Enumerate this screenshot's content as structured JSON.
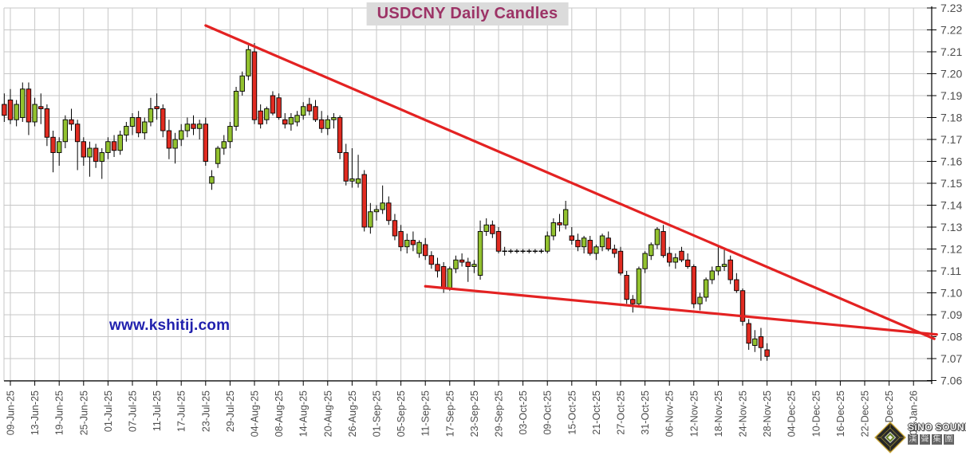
{
  "title": "USDCNY Daily Candles",
  "watermark": "www.kshitij.com",
  "logo": {
    "name": "SiNO SOUND",
    "chinese_chars": [
      "漢",
      "聲",
      "集",
      "團"
    ]
  },
  "colors": {
    "background": "#FFFFFF",
    "up_candle": "#93C22F",
    "down_candle": "#E02B21",
    "candle_outline": "#000000",
    "trendline": "#E32222",
    "grid": "#C7C7C7",
    "axis": "#000000",
    "axis_label": "#4D4D4D",
    "title_text": "#9C3366",
    "title_background": "#DBDBDB",
    "watermark_text": "#2121AE"
  },
  "chart_data": {
    "type": "candlestick",
    "title": "USDCNY Daily Candles",
    "grid": true,
    "y_axis": {
      "side": "right",
      "min": 7.06,
      "max": 7.23,
      "tick_step": 0.01,
      "labels": [
        "7.23",
        "7.22",
        "7.21",
        "7.20",
        "7.19",
        "7.18",
        "7.17",
        "7.16",
        "7.15",
        "7.14",
        "7.13",
        "7.12",
        "7.11",
        "7.10",
        "7.09",
        "7.08",
        "7.07",
        "7.06"
      ]
    },
    "x_axis": {
      "labels": [
        "09-Jun-25",
        "13-Jun-25",
        "19-Jun-25",
        "25-Jun-25",
        "01-Jul-25",
        "07-Jul-25",
        "11-Jul-25",
        "17-Jul-25",
        "23-Jul-25",
        "29-Jul-25",
        "04-Aug-25",
        "08-Aug-25",
        "14-Aug-25",
        "20-Aug-25",
        "26-Aug-25",
        "01-Sep-25",
        "05-Sep-25",
        "11-Sep-25",
        "17-Sep-25",
        "23-Sep-25",
        "29-Sep-25",
        "03-Oct-25",
        "09-Oct-25",
        "15-Oct-25",
        "21-Oct-25",
        "27-Oct-25",
        "31-Oct-25",
        "06-Nov-25",
        "12-Nov-25",
        "18-Nov-25",
        "24-Nov-25",
        "28-Nov-25",
        "04-Dec-25",
        "10-Dec-25",
        "16-Dec-25",
        "22-Dec-25",
        "26-Dec-25",
        "01-Jan-26"
      ],
      "label_every_n_candles": 4
    },
    "candles_format": [
      "date",
      "open",
      "high",
      "low",
      "close"
    ],
    "candles": [
      [
        "06-Jun-25",
        7.186,
        7.191,
        7.178,
        7.181
      ],
      [
        "09-Jun-25",
        7.188,
        7.193,
        7.177,
        7.179
      ],
      [
        "10-Jun-25",
        7.179,
        7.188,
        7.176,
        7.186
      ],
      [
        "11-Jun-25",
        7.18,
        7.196,
        7.178,
        7.193
      ],
      [
        "12-Jun-25",
        7.193,
        7.196,
        7.172,
        7.178
      ],
      [
        "13-Jun-25",
        7.178,
        7.189,
        7.176,
        7.186
      ],
      [
        "16-Jun-25",
        7.185,
        7.191,
        7.177,
        7.184
      ],
      [
        "17-Jun-25",
        7.184,
        7.186,
        7.167,
        7.171
      ],
      [
        "18-Jun-25",
        7.171,
        7.174,
        7.155,
        7.164
      ],
      [
        "19-Jun-25",
        7.164,
        7.171,
        7.158,
        7.169
      ],
      [
        "20-Jun-25",
        7.169,
        7.181,
        7.166,
        7.179
      ],
      [
        "23-Jun-25",
        7.179,
        7.184,
        7.174,
        7.177
      ],
      [
        "24-Jun-25",
        7.177,
        7.179,
        7.156,
        7.169
      ],
      [
        "25-Jun-25",
        7.169,
        7.171,
        7.158,
        7.162
      ],
      [
        "26-Jun-25",
        7.162,
        7.169,
        7.153,
        7.166
      ],
      [
        "27-Jun-25",
        7.166,
        7.168,
        7.157,
        7.16
      ],
      [
        "30-Jun-25",
        7.16,
        7.166,
        7.152,
        7.164
      ],
      [
        "01-Jul-25",
        7.164,
        7.171,
        7.161,
        7.169
      ],
      [
        "02-Jul-25",
        7.169,
        7.172,
        7.162,
        7.165
      ],
      [
        "03-Jul-25",
        7.165,
        7.174,
        7.163,
        7.172
      ],
      [
        "04-Jul-25",
        7.172,
        7.178,
        7.169,
        7.176
      ],
      [
        "07-Jul-25",
        7.176,
        7.182,
        7.172,
        7.18
      ],
      [
        "08-Jul-25",
        7.18,
        7.183,
        7.171,
        7.173
      ],
      [
        "09-Jul-25",
        7.173,
        7.18,
        7.17,
        7.178
      ],
      [
        "10-Jul-25",
        7.178,
        7.189,
        7.176,
        7.184
      ],
      [
        "11-Jul-25",
        7.185,
        7.191,
        7.179,
        7.184
      ],
      [
        "14-Jul-25",
        7.184,
        7.186,
        7.171,
        7.174
      ],
      [
        "15-Jul-25",
        7.174,
        7.179,
        7.161,
        7.166
      ],
      [
        "16-Jul-25",
        7.166,
        7.173,
        7.159,
        7.17
      ],
      [
        "17-Jul-25",
        7.17,
        7.177,
        7.167,
        7.174
      ],
      [
        "18-Jul-25",
        7.174,
        7.18,
        7.171,
        7.177
      ],
      [
        "21-Jul-25",
        7.177,
        7.181,
        7.172,
        7.175
      ],
      [
        "22-Jul-25",
        7.175,
        7.179,
        7.17,
        7.177
      ],
      [
        "23-Jul-25",
        7.177,
        7.18,
        7.158,
        7.16
      ],
      [
        "24-Jul-25",
        7.15,
        7.156,
        7.147,
        7.153
      ],
      [
        "25-Jul-25",
        7.159,
        7.167,
        7.157,
        7.166
      ],
      [
        "28-Jul-25",
        7.166,
        7.172,
        7.163,
        7.169
      ],
      [
        "29-Jul-25",
        7.169,
        7.178,
        7.166,
        7.176
      ],
      [
        "30-Jul-25",
        7.176,
        7.194,
        7.174,
        7.192
      ],
      [
        "31-Jul-25",
        7.192,
        7.201,
        7.19,
        7.199
      ],
      [
        "01-Aug-25",
        7.199,
        7.213,
        7.197,
        7.211
      ],
      [
        "04-Aug-25",
        7.21,
        7.214,
        7.177,
        7.179
      ],
      [
        "05-Aug-25",
        7.183,
        7.186,
        7.175,
        7.177
      ],
      [
        "06-Aug-25",
        7.179,
        7.185,
        7.177,
        7.184
      ],
      [
        "07-Aug-25",
        7.19,
        7.192,
        7.181,
        7.182
      ],
      [
        "08-Aug-25",
        7.189,
        7.191,
        7.179,
        7.18
      ],
      [
        "11-Aug-25",
        7.179,
        7.182,
        7.175,
        7.177
      ],
      [
        "12-Aug-25",
        7.177,
        7.182,
        7.174,
        7.18
      ],
      [
        "13-Aug-25",
        7.178,
        7.183,
        7.176,
        7.181
      ],
      [
        "14-Aug-25",
        7.181,
        7.187,
        7.179,
        7.185
      ],
      [
        "15-Aug-25",
        7.186,
        7.189,
        7.181,
        7.183
      ],
      [
        "18-Aug-25",
        7.185,
        7.188,
        7.178,
        7.179
      ],
      [
        "19-Aug-25",
        7.179,
        7.183,
        7.173,
        7.175
      ],
      [
        "20-Aug-25",
        7.175,
        7.181,
        7.172,
        7.179
      ],
      [
        "21-Aug-25",
        7.179,
        7.182,
        7.175,
        7.18
      ],
      [
        "22-Aug-25",
        7.18,
        7.181,
        7.161,
        7.164
      ],
      [
        "25-Aug-25",
        7.164,
        7.168,
        7.149,
        7.151
      ],
      [
        "26-Aug-25",
        7.151,
        7.166,
        7.148,
        7.152
      ],
      [
        "27-Aug-25",
        7.15,
        7.163,
        7.148,
        7.152
      ],
      [
        "28-Aug-25",
        7.154,
        7.156,
        7.128,
        7.13
      ],
      [
        "29-Aug-25",
        7.13,
        7.141,
        7.127,
        7.137
      ],
      [
        "01-Sep-25",
        7.137,
        7.14,
        7.133,
        7.138
      ],
      [
        "02-Sep-25",
        7.138,
        7.149,
        7.136,
        7.141
      ],
      [
        "03-Sep-25",
        7.141,
        7.144,
        7.131,
        7.133
      ],
      [
        "04-Sep-25",
        7.133,
        7.136,
        7.124,
        7.126
      ],
      [
        "05-Sep-25",
        7.128,
        7.131,
        7.119,
        7.121
      ],
      [
        "08-Sep-25",
        7.121,
        7.127,
        7.118,
        7.124
      ],
      [
        "09-Sep-25",
        7.124,
        7.128,
        7.119,
        7.122
      ],
      [
        "10-Sep-25",
        7.118,
        7.124,
        7.116,
        7.123
      ],
      [
        "11-Sep-25",
        7.122,
        7.125,
        7.115,
        7.117
      ],
      [
        "12-Sep-25",
        7.117,
        7.119,
        7.111,
        7.113
      ],
      [
        "15-Sep-25",
        7.113,
        7.116,
        7.107,
        7.11
      ],
      [
        "16-Sep-25",
        7.112,
        7.114,
        7.1,
        7.102
      ],
      [
        "17-Sep-25",
        7.102,
        7.112,
        7.101,
        7.111
      ],
      [
        "18-Sep-25",
        7.111,
        7.117,
        7.109,
        7.115
      ],
      [
        "19-Sep-25",
        7.115,
        7.118,
        7.112,
        7.114
      ],
      [
        "22-Sep-25",
        7.114,
        7.116,
        7.105,
        7.112
      ],
      [
        "23-Sep-25",
        7.112,
        7.115,
        7.109,
        7.113
      ],
      [
        "24-Sep-25",
        7.108,
        7.133,
        7.106,
        7.128
      ],
      [
        "25-Sep-25",
        7.128,
        7.134,
        7.126,
        7.131
      ],
      [
        "26-Sep-25",
        7.131,
        7.133,
        7.125,
        7.127
      ],
      [
        "29-Sep-25",
        7.128,
        7.13,
        7.118,
        7.119
      ],
      [
        "30-Sep-25",
        7.119,
        7.121,
        7.117,
        7.119
      ],
      [
        "01-Oct-25",
        7.119,
        7.12,
        7.118,
        7.119
      ],
      [
        "02-Oct-25",
        7.119,
        7.12,
        7.118,
        7.119
      ],
      [
        "03-Oct-25",
        7.119,
        7.12,
        7.118,
        7.119
      ],
      [
        "06-Oct-25",
        7.119,
        7.12,
        7.118,
        7.119
      ],
      [
        "07-Oct-25",
        7.119,
        7.12,
        7.118,
        7.119
      ],
      [
        "08-Oct-25",
        7.119,
        7.12,
        7.118,
        7.119
      ],
      [
        "09-Oct-25",
        7.119,
        7.128,
        7.118,
        7.126
      ],
      [
        "10-Oct-25",
        7.126,
        7.134,
        7.124,
        7.132
      ],
      [
        "13-Oct-25",
        7.132,
        7.136,
        7.128,
        7.131
      ],
      [
        "14-Oct-25",
        7.131,
        7.142,
        7.129,
        7.138
      ],
      [
        "15-Oct-25",
        7.126,
        7.13,
        7.122,
        7.124
      ],
      [
        "16-Oct-25",
        7.124,
        7.127,
        7.119,
        7.121
      ],
      [
        "17-Oct-25",
        7.121,
        7.126,
        7.118,
        7.125
      ],
      [
        "20-Oct-25",
        7.124,
        7.126,
        7.117,
        7.118
      ],
      [
        "21-Oct-25",
        7.118,
        7.122,
        7.115,
        7.121
      ],
      [
        "22-Oct-25",
        7.121,
        7.127,
        7.119,
        7.126
      ],
      [
        "23-Oct-25",
        7.125,
        7.128,
        7.119,
        7.12
      ],
      [
        "24-Oct-25",
        7.12,
        7.122,
        7.116,
        7.118
      ],
      [
        "27-Oct-25",
        7.119,
        7.121,
        7.108,
        7.109
      ],
      [
        "28-Oct-25",
        7.108,
        7.11,
        7.095,
        7.097
      ],
      [
        "29-Oct-25",
        7.097,
        7.099,
        7.091,
        7.095
      ],
      [
        "30-Oct-25",
        7.095,
        7.112,
        7.094,
        7.111
      ],
      [
        "31-Oct-25",
        7.111,
        7.119,
        7.109,
        7.118
      ],
      [
        "03-Nov-25",
        7.117,
        7.123,
        7.115,
        7.122
      ],
      [
        "04-Nov-25",
        7.122,
        7.13,
        7.12,
        7.129
      ],
      [
        "05-Nov-25",
        7.128,
        7.131,
        7.116,
        7.117
      ],
      [
        "06-Nov-25",
        7.118,
        7.121,
        7.112,
        7.114
      ],
      [
        "07-Nov-25",
        7.114,
        7.118,
        7.111,
        7.116
      ],
      [
        "10-Nov-25",
        7.119,
        7.121,
        7.114,
        7.115
      ],
      [
        "11-Nov-25",
        7.115,
        7.118,
        7.111,
        7.112
      ],
      [
        "12-Nov-25",
        7.112,
        7.113,
        7.093,
        7.095
      ],
      [
        "13-Nov-25",
        7.095,
        7.1,
        7.092,
        7.098
      ],
      [
        "14-Nov-25",
        7.098,
        7.107,
        7.096,
        7.106
      ],
      [
        "17-Nov-25",
        7.106,
        7.112,
        7.104,
        7.11
      ],
      [
        "18-Nov-25",
        7.11,
        7.121,
        7.108,
        7.112
      ],
      [
        "19-Nov-25",
        7.112,
        7.12,
        7.11,
        7.113
      ],
      [
        "20-Nov-25",
        7.115,
        7.117,
        7.104,
        7.106
      ],
      [
        "21-Nov-25",
        7.106,
        7.109,
        7.1,
        7.101
      ],
      [
        "24-Nov-25",
        7.101,
        7.102,
        7.085,
        7.087
      ],
      [
        "25-Nov-25",
        7.086,
        7.088,
        7.074,
        7.077
      ],
      [
        "26-Nov-25",
        7.076,
        7.083,
        7.073,
        7.079
      ],
      [
        "27-Nov-25",
        7.08,
        7.084,
        7.069,
        7.075
      ],
      [
        "28-Nov-25",
        7.074,
        7.077,
        7.069,
        7.071
      ]
    ],
    "trendlines": [
      {
        "name": "upper-resistance-line",
        "from_slot": 32.0,
        "from_price": 7.222,
        "to_slot": 151.4,
        "to_price": 7.079
      },
      {
        "name": "lower-support-line",
        "from_slot": 68.0,
        "from_price": 7.103,
        "to_slot": 151.8,
        "to_price": 7.081
      }
    ]
  }
}
